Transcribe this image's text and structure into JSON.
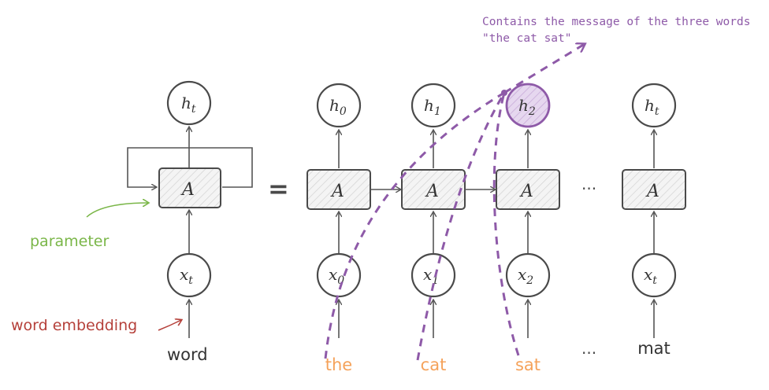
{
  "annotation": {
    "line1": "Contains the message of the three words",
    "line2": "\"the cat sat\"",
    "color": "#8e5aa8"
  },
  "left_unit": {
    "output_label": "h",
    "output_sub": "t",
    "cell_label": "A",
    "input_label": "x",
    "input_sub": "t",
    "word_label": "word",
    "parameter_label": "parameter",
    "parameter_color": "#7ab648",
    "embedding_label": "word embedding",
    "embedding_color": "#b5403a"
  },
  "equals_sign": "=",
  "unrolled": {
    "ellipsis": "···",
    "steps": [
      {
        "output_label": "h",
        "output_sub": "0",
        "cell_label": "A",
        "input_label": "x",
        "input_sub": "0",
        "word": "the",
        "word_color": "#f5a25a",
        "highlight": false
      },
      {
        "output_label": "h",
        "output_sub": "1",
        "cell_label": "A",
        "input_label": "x",
        "input_sub": "1",
        "word": "cat",
        "word_color": "#f5a25a",
        "highlight": false
      },
      {
        "output_label": "h",
        "output_sub": "2",
        "cell_label": "A",
        "input_label": "x",
        "input_sub": "2",
        "word": "sat",
        "word_color": "#f5a25a",
        "highlight": true
      },
      {
        "output_label": "h",
        "output_sub": "t",
        "cell_label": "A",
        "input_label": "x",
        "input_sub": "t",
        "word": "mat",
        "word_color": "#333333",
        "highlight": false
      }
    ]
  },
  "colors": {
    "stroke": "#4a4a4a",
    "highlight_fill": "#d9c6e6",
    "highlight_stroke": "#8e5aa8"
  }
}
